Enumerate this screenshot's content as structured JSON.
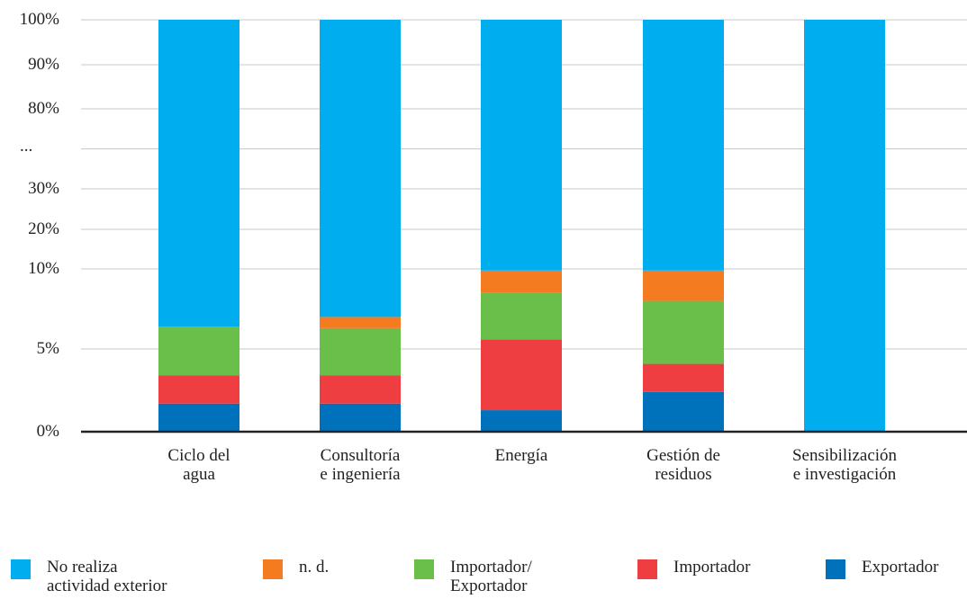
{
  "chart_data": {
    "type": "stacked_bar",
    "categories": [
      "Ciclo del\nagua",
      "Consultoría\ne ingeniería",
      "Energía",
      "Gestión de\nresiduos",
      "Sensibilización\ne investigación"
    ],
    "series": [
      {
        "name": "Exportador",
        "color": "#0072bc",
        "values": [
          1.7,
          1.7,
          1.3,
          2.4,
          0
        ]
      },
      {
        "name": "Importador",
        "color": "#ef3e42",
        "values": [
          1.7,
          1.7,
          4.3,
          1.7,
          0
        ]
      },
      {
        "name": "Importador/\nExportador",
        "color": "#6abf4b",
        "values": [
          3.0,
          2.9,
          2.9,
          3.9,
          0
        ]
      },
      {
        "name": "n. d.",
        "color": "#f47b20",
        "values": [
          0,
          0.7,
          1.4,
          1.9,
          0
        ]
      },
      {
        "name": "No realiza\nactividad exterior",
        "color": "#00aeef",
        "values": [
          93.6,
          93.0,
          90.1,
          90.1,
          100
        ]
      }
    ],
    "ylim": [
      0,
      100
    ],
    "yticks": [
      {
        "value": 0,
        "label": "0%"
      },
      {
        "value": 5,
        "label": "5%"
      },
      {
        "value": 10,
        "label": "10%"
      },
      {
        "value": 20,
        "label": "20%"
      },
      {
        "value": 30,
        "label": "30%"
      },
      {
        "value": 80,
        "label": "80%"
      },
      {
        "value": 90,
        "label": "90%"
      },
      {
        "value": 100,
        "label": "100%"
      }
    ],
    "axis_break_label": "...",
    "grid": true
  }
}
